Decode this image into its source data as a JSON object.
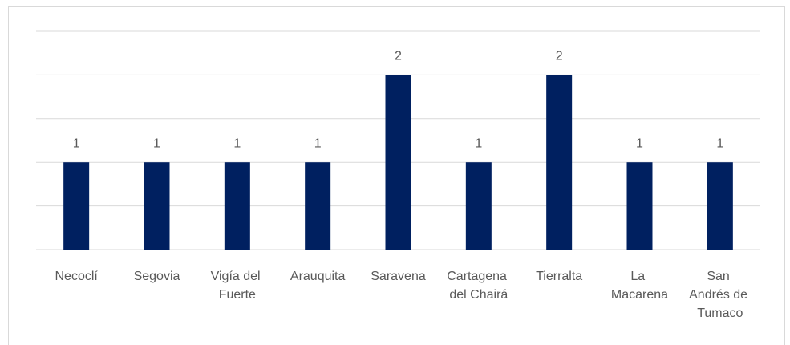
{
  "chart_data": {
    "type": "bar",
    "categories": [
      "Necoclí",
      "Segovia",
      "Vigía del Fuerte",
      "Arauquita",
      "Saravena",
      "Cartagena del Chairá",
      "Tierralta",
      "La Macarena",
      "San Andrés de Tumaco"
    ],
    "values": [
      1,
      1,
      1,
      1,
      2,
      1,
      2,
      1,
      1
    ],
    "color": "#002060",
    "ylim": [
      0,
      2.5
    ],
    "yticks": [
      0,
      0.5,
      1,
      1.5,
      2,
      2.5
    ],
    "grid": true
  }
}
